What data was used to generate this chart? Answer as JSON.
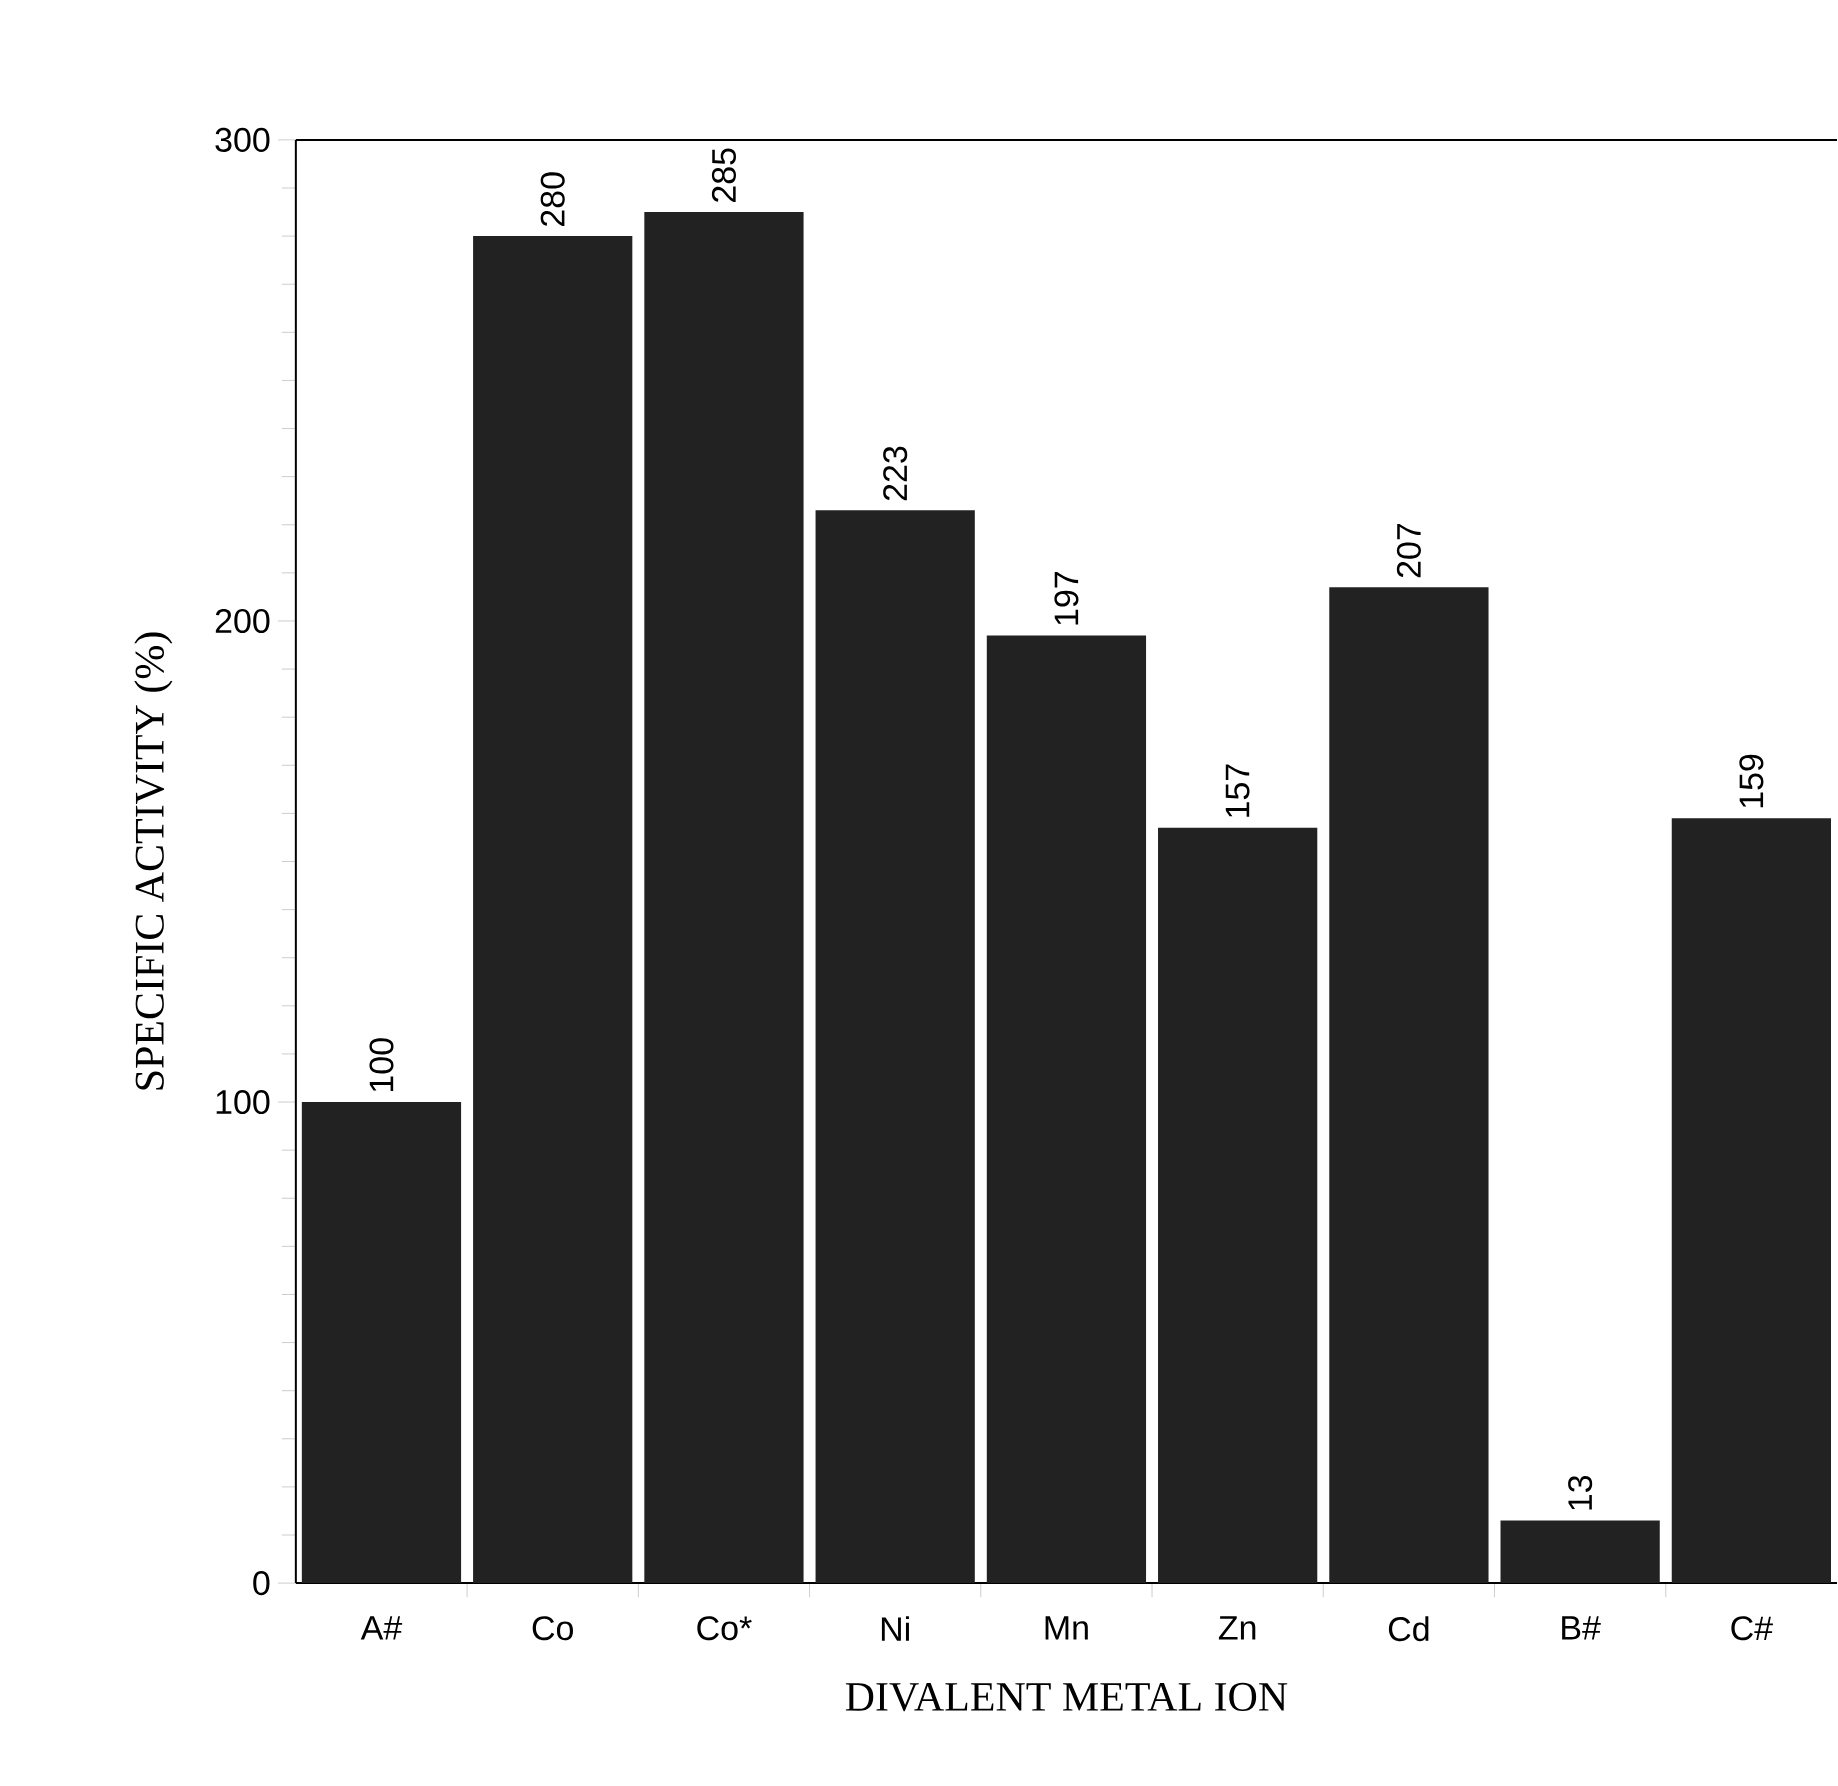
{
  "chart_data": {
    "type": "bar",
    "xlabel": "DIVALENT METAL ION",
    "ylabel": "SPECIFIC ACTIVITY (%)",
    "categories": [
      "A#",
      "Co",
      "Co*",
      "Ni",
      "Mn",
      "Zn",
      "Cd",
      "B#",
      "C#"
    ],
    "values": [
      100,
      280,
      285,
      223,
      197,
      157,
      207,
      13,
      159
    ],
    "color": "#222222",
    "ylim": [
      0,
      300
    ],
    "yticks": [
      0,
      100,
      200,
      300
    ],
    "data_labels": true,
    "grid": false
  }
}
